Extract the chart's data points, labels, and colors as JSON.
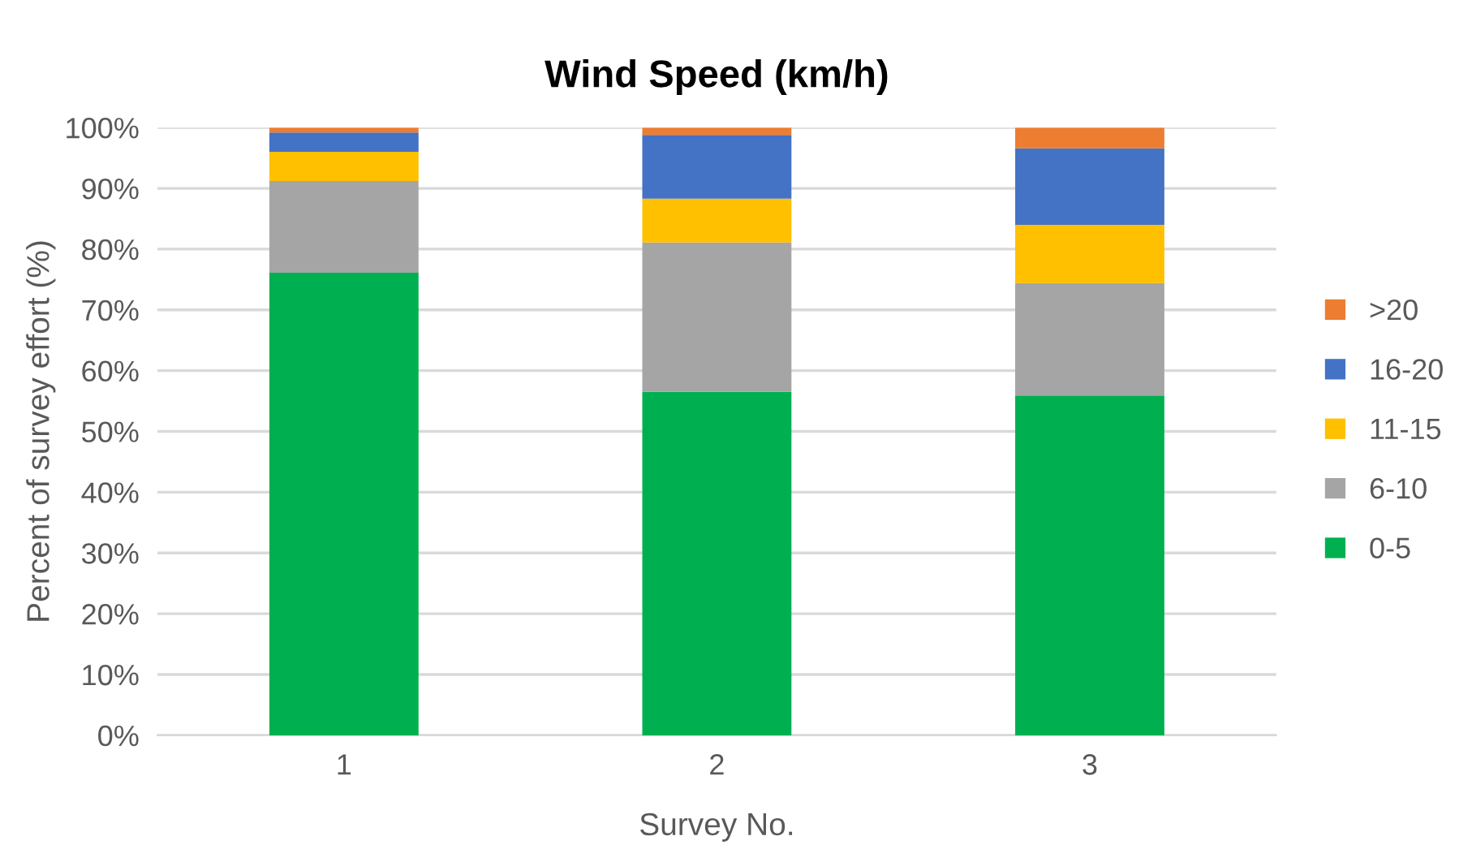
{
  "chart_data": {
    "type": "bar",
    "title": "Wind Speed (km/h)",
    "xlabel": "Survey No.",
    "ylabel": "Percent of survey effort (%)",
    "categories": [
      "1",
      "2",
      "3"
    ],
    "stacked": true,
    "series": [
      {
        "name": "0-5",
        "color": "#00b050",
        "values": [
          76.1,
          56.5,
          55.9
        ]
      },
      {
        "name": "6-10",
        "color": "#a5a5a5",
        "values": [
          15.1,
          24.6,
          18.5
        ]
      },
      {
        "name": "11-15",
        "color": "#ffc000",
        "values": [
          4.8,
          7.2,
          9.6
        ]
      },
      {
        "name": "16-20",
        "color": "#4472c4",
        "values": [
          3.2,
          10.5,
          12.6
        ]
      },
      {
        "name": ">20",
        "color": "#ed7d31",
        "values": [
          0.8,
          1.2,
          3.4
        ]
      }
    ],
    "ylim": [
      0,
      100
    ],
    "yticks": [
      {
        "value": 0,
        "label": "0%"
      },
      {
        "value": 10,
        "label": "10%"
      },
      {
        "value": 20,
        "label": "20%"
      },
      {
        "value": 30,
        "label": "30%"
      },
      {
        "value": 40,
        "label": "40%"
      },
      {
        "value": 50,
        "label": "50%"
      },
      {
        "value": 60,
        "label": "60%"
      },
      {
        "value": 70,
        "label": "70%"
      },
      {
        "value": 80,
        "label": "80%"
      },
      {
        "value": 90,
        "label": "90%"
      },
      {
        "value": 100,
        "label": "100%"
      }
    ],
    "grid": "y",
    "legend": "right"
  }
}
